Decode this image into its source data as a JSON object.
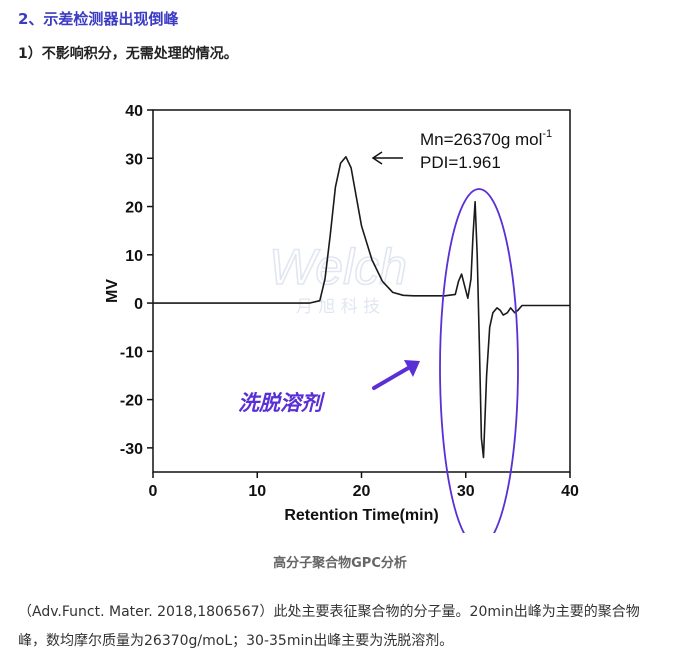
{
  "heading": "2、示差检测器出现倒峰",
  "subheading": "1）不影响积分，无需处理的情况。",
  "caption": "高分子聚合物GPC分析",
  "paragraph": "（Adv.Funct. Mater. 2018,1806567）此处主要表征聚合物的分子量。20min出峰为主要的聚合物峰，数均摩尔质量为26370g/moL；30-35min出峰主要为洗脱溶剂。",
  "watermark": {
    "brand": "Welch",
    "cn": "月 旭 科 技"
  },
  "chart_data": {
    "type": "line",
    "xlabel": "Retention Time(min)",
    "ylabel": "MV",
    "xlim": [
      0,
      40
    ],
    "ylim": [
      -35,
      40
    ],
    "xticks": [
      0,
      10,
      20,
      30,
      40
    ],
    "yticks": [
      40,
      30,
      20,
      10,
      0,
      -10,
      -20,
      -30
    ],
    "grid": false,
    "annotations": {
      "mn_text": "Mn=26370g mol",
      "mn_sup": "-1",
      "pdi_text": "PDI=1.961",
      "solvent_label": "洗脱溶剂"
    },
    "colors": {
      "line": "#1a1a1a",
      "highlight": "#5a2fd6"
    },
    "series": [
      {
        "x": [
          0,
          15,
          16,
          16.5,
          17,
          17.5,
          18,
          18.5,
          19,
          19.5,
          20,
          21,
          22,
          23,
          24,
          25,
          26,
          27,
          28,
          29,
          29.3,
          29.6,
          29.9,
          30.2,
          30.5,
          30.7,
          30.9,
          31.1,
          31.3,
          31.5,
          31.7,
          32.0,
          32.3,
          32.6,
          33.0,
          33.3,
          33.6,
          34.0,
          34.3,
          34.7,
          35.0,
          35.4,
          36,
          40
        ],
        "y": [
          0,
          0,
          0.5,
          5,
          14,
          24,
          29,
          30.3,
          28,
          22,
          16,
          9,
          4.5,
          2.2,
          1.6,
          1.5,
          1.5,
          1.5,
          1.5,
          1.8,
          4.5,
          6,
          3.5,
          1,
          5,
          14,
          21,
          10,
          -8,
          -28,
          -32,
          -15,
          -5,
          -2,
          -1,
          -1.5,
          -2.5,
          -2,
          -1,
          -2,
          -1.5,
          -0.5,
          -0.5,
          -0.5
        ]
      }
    ]
  }
}
